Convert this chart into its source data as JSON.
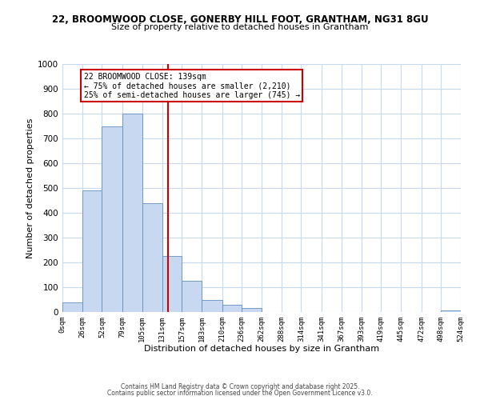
{
  "title_line1": "22, BROOMWOOD CLOSE, GONERBY HILL FOOT, GRANTHAM, NG31 8GU",
  "title_line2": "Size of property relative to detached houses in Grantham",
  "xlabel": "Distribution of detached houses by size in Grantham",
  "ylabel": "Number of detached properties",
  "bin_labels": [
    "0sqm",
    "26sqm",
    "52sqm",
    "79sqm",
    "105sqm",
    "131sqm",
    "157sqm",
    "183sqm",
    "210sqm",
    "236sqm",
    "262sqm",
    "288sqm",
    "314sqm",
    "341sqm",
    "367sqm",
    "393sqm",
    "419sqm",
    "445sqm",
    "472sqm",
    "498sqm",
    "524sqm"
  ],
  "bin_edges": [
    0,
    26,
    52,
    79,
    105,
    131,
    157,
    183,
    210,
    236,
    262,
    288,
    314,
    341,
    367,
    393,
    419,
    445,
    472,
    498,
    524
  ],
  "bar_heights": [
    40,
    490,
    750,
    800,
    440,
    225,
    125,
    50,
    28,
    15,
    0,
    0,
    0,
    0,
    0,
    0,
    0,
    0,
    0,
    5
  ],
  "bar_color": "#c8d8f0",
  "bar_edgecolor": "#6090c0",
  "vline_x": 139,
  "vline_color": "#cc0000",
  "ylim": [
    0,
    1000
  ],
  "annotation_box_text": [
    "22 BROOMWOOD CLOSE: 139sqm",
    "← 75% of detached houses are smaller (2,210)",
    "25% of semi-detached houses are larger (745) →"
  ],
  "footer_line1": "Contains HM Land Registry data © Crown copyright and database right 2025.",
  "footer_line2": "Contains public sector information licensed under the Open Government Licence v3.0.",
  "background_color": "#ffffff",
  "grid_color": "#c8d8f0"
}
